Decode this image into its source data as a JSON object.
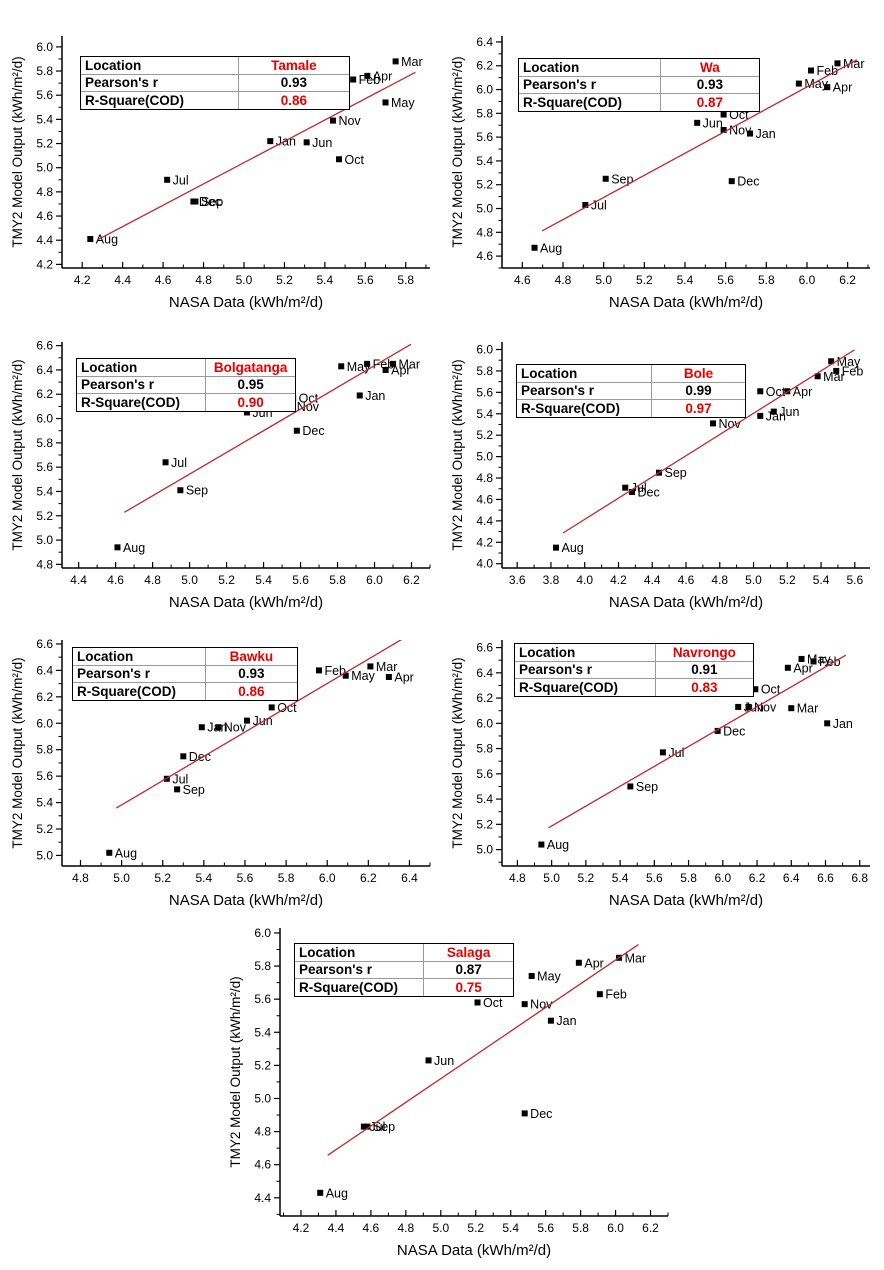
{
  "figure": {
    "description": "Correlation of NASA data and TMY2 model output for seven Ghana locations",
    "marker_color": "#000000",
    "trend_line_color": "#c0272d",
    "highlight_color": "#e60000"
  },
  "legend_labels": {
    "location": "Location",
    "pearson": "Pearson's r",
    "rsquare": "R-Square(COD)"
  },
  "chart_data": [
    {
      "type": "scatter",
      "location": "Tamale",
      "pearson_r": "0.93",
      "r_square": "0.86",
      "xlabel": "NASA Data (kWh/m²/d)",
      "ylabel": "TMY2 Model Output (kWh/m²/d)",
      "xlim": [
        4.1,
        5.92
      ],
      "ylim": [
        4.17,
        6.09
      ],
      "x_ticks": [
        4.2,
        4.4,
        4.6,
        4.8,
        5.0,
        5.2,
        5.4,
        5.6,
        5.8
      ],
      "y_ticks": [
        4.2,
        4.4,
        4.6,
        4.8,
        5.0,
        5.2,
        5.4,
        5.6,
        5.8,
        6.0
      ],
      "trendline": true,
      "points": [
        [
          "Jan",
          5.13,
          5.22
        ],
        [
          "Feb",
          5.54,
          5.73
        ],
        [
          "Mar",
          5.75,
          5.88
        ],
        [
          "Apr",
          5.61,
          5.76
        ],
        [
          "May",
          5.7,
          5.54
        ],
        [
          "Jun",
          5.31,
          5.21
        ],
        [
          "Jul",
          4.62,
          4.9
        ],
        [
          "Aug",
          4.24,
          4.41
        ],
        [
          "Sep",
          4.76,
          4.72
        ],
        [
          "Oct",
          5.47,
          5.07
        ],
        [
          "Nov",
          5.44,
          5.39
        ],
        [
          "Dec",
          4.75,
          4.72
        ]
      ]
    },
    {
      "type": "scatter",
      "location": "Wa",
      "pearson_r": "0.93",
      "r_square": "0.87",
      "xlabel": "NASA Data (kWh/m²/d)",
      "ylabel": "TMY2 Model Output (kWh/m²/d)",
      "xlim": [
        4.5,
        6.31
      ],
      "ylim": [
        4.5,
        6.45
      ],
      "x_ticks": [
        4.6,
        4.8,
        5.0,
        5.2,
        5.4,
        5.6,
        5.8,
        6.0,
        6.2
      ],
      "y_ticks": [
        4.6,
        4.8,
        5.0,
        5.2,
        5.4,
        5.6,
        5.8,
        6.0,
        6.2,
        6.4
      ],
      "trendline": true,
      "points": [
        [
          "Jan",
          5.72,
          5.63
        ],
        [
          "Feb",
          6.02,
          6.16
        ],
        [
          "Mar",
          6.15,
          6.22
        ],
        [
          "Apr",
          6.1,
          6.02
        ],
        [
          "May",
          5.96,
          6.05
        ],
        [
          "Jun",
          5.46,
          5.72
        ],
        [
          "Jul",
          4.91,
          5.03
        ],
        [
          "Aug",
          4.66,
          4.67
        ],
        [
          "Sep",
          5.01,
          5.25
        ],
        [
          "Oct",
          5.59,
          5.79
        ],
        [
          "Nov",
          5.59,
          5.66
        ],
        [
          "Dec",
          5.63,
          5.23
        ]
      ]
    },
    {
      "type": "scatter",
      "location": "Bolgatanga",
      "pearson_r": "0.95",
      "r_square": "0.90",
      "xlabel": "NASA Data (kWh/m²/d)",
      "ylabel": "TMY2 Model Output (kWh/m²/d)",
      "xlim": [
        4.31,
        6.3
      ],
      "ylim": [
        4.77,
        6.63
      ],
      "x_ticks": [
        4.4,
        4.6,
        4.8,
        5.0,
        5.2,
        5.4,
        5.6,
        5.8,
        6.0,
        6.2
      ],
      "y_ticks": [
        4.8,
        5.0,
        5.2,
        5.4,
        5.6,
        5.8,
        6.0,
        6.2,
        6.4,
        6.6
      ],
      "trendline": true,
      "points": [
        [
          "Jan",
          5.92,
          6.19
        ],
        [
          "Feb",
          5.96,
          6.45
        ],
        [
          "Mar",
          6.1,
          6.45
        ],
        [
          "Apr",
          6.06,
          6.4
        ],
        [
          "May",
          5.82,
          6.43
        ],
        [
          "Jun",
          5.31,
          6.05
        ],
        [
          "Jul",
          4.87,
          5.64
        ],
        [
          "Aug",
          4.61,
          4.94
        ],
        [
          "Sep",
          4.95,
          5.41
        ],
        [
          "Oct",
          5.56,
          6.17
        ],
        [
          "Nov",
          5.55,
          6.1
        ],
        [
          "Dec",
          5.58,
          5.9
        ]
      ]
    },
    {
      "type": "scatter",
      "location": "Bole",
      "pearson_r": "0.99",
      "r_square": "0.97",
      "xlabel": "NASA Data (kWh/m²/d)",
      "ylabel": "TMY2 Model Output (kWh/m²/d)",
      "xlim": [
        3.51,
        5.69
      ],
      "ylim": [
        3.96,
        6.07
      ],
      "x_ticks": [
        3.6,
        3.8,
        4.0,
        4.2,
        4.4,
        4.6,
        4.8,
        5.0,
        5.2,
        5.4,
        5.6
      ],
      "y_ticks": [
        4.0,
        4.2,
        4.4,
        4.6,
        4.8,
        5.0,
        5.2,
        5.4,
        5.6,
        5.8,
        6.0
      ],
      "trendline": true,
      "points": [
        [
          "Jan",
          5.04,
          5.38
        ],
        [
          "Feb",
          5.49,
          5.8
        ],
        [
          "Mar",
          5.38,
          5.75
        ],
        [
          "Apr",
          5.2,
          5.61
        ],
        [
          "May",
          5.46,
          5.89
        ],
        [
          "Jun",
          5.12,
          5.42
        ],
        [
          "Jul",
          4.24,
          4.71
        ],
        [
          "Aug",
          3.83,
          4.15
        ],
        [
          "Sep",
          4.44,
          4.85
        ],
        [
          "Oct",
          5.04,
          5.61
        ],
        [
          "Nov",
          4.76,
          5.31
        ],
        [
          "Dec",
          4.28,
          4.67
        ]
      ]
    },
    {
      "type": "scatter",
      "location": "Bawku",
      "pearson_r": "0.93",
      "r_square": "0.86",
      "xlabel": "NASA Data (kWh/m²/d)",
      "ylabel": "TMY2 Model Output (kWh/m²/d)",
      "xlim": [
        4.71,
        6.5
      ],
      "ylim": [
        4.92,
        6.63
      ],
      "x_ticks": [
        4.8,
        5.0,
        5.2,
        5.4,
        5.6,
        5.8,
        6.0,
        6.2,
        6.4
      ],
      "y_ticks": [
        5.0,
        5.2,
        5.4,
        5.6,
        5.8,
        6.0,
        6.2,
        6.4,
        6.6
      ],
      "trendline": true,
      "points": [
        [
          "Jan",
          5.39,
          5.97
        ],
        [
          "Feb",
          5.96,
          6.4
        ],
        [
          "Mar",
          6.21,
          6.43
        ],
        [
          "Apr",
          6.3,
          6.35
        ],
        [
          "May",
          6.09,
          6.36
        ],
        [
          "Jun",
          5.61,
          6.02
        ],
        [
          "Jul",
          5.22,
          5.58
        ],
        [
          "Aug",
          4.94,
          5.02
        ],
        [
          "Sep",
          5.27,
          5.5
        ],
        [
          "Oct",
          5.73,
          6.12
        ],
        [
          "Nov",
          5.47,
          5.97
        ],
        [
          "Dec",
          5.3,
          5.75
        ]
      ]
    },
    {
      "type": "scatter",
      "location": "Navrongo",
      "pearson_r": "0.91",
      "r_square": "0.83",
      "xlabel": "NASA Data (kWh/m²/d)",
      "ylabel": "TMY2 Model Output (kWh/m²/d)",
      "xlim": [
        4.71,
        6.86
      ],
      "ylim": [
        4.87,
        6.66
      ],
      "x_ticks": [
        4.8,
        5.0,
        5.2,
        5.4,
        5.6,
        5.8,
        6.0,
        6.2,
        6.4,
        6.6,
        6.8
      ],
      "y_ticks": [
        5.0,
        5.2,
        5.4,
        5.6,
        5.8,
        6.0,
        6.2,
        6.4,
        6.6
      ],
      "trendline": true,
      "points": [
        [
          "Jan",
          6.61,
          6.0
        ],
        [
          "Feb",
          6.53,
          6.49
        ],
        [
          "Mar",
          6.4,
          6.12
        ],
        [
          "Apr",
          6.38,
          6.44
        ],
        [
          "May",
          6.46,
          6.51
        ],
        [
          "Jun",
          6.09,
          6.13
        ],
        [
          "Jul",
          5.65,
          5.77
        ],
        [
          "Aug",
          4.94,
          5.04
        ],
        [
          "Sep",
          5.46,
          5.5
        ],
        [
          "Oct",
          6.19,
          6.27
        ],
        [
          "Nov",
          6.15,
          6.13
        ],
        [
          "Dec",
          5.97,
          5.94
        ]
      ]
    },
    {
      "type": "scatter",
      "location": "Salaga",
      "pearson_r": "0.87",
      "r_square": "0.75",
      "xlabel": "NASA Data (kWh/m²/d)",
      "ylabel": "TMY2 Model Output (kWh/m²/d)",
      "xlim": [
        4.08,
        6.3
      ],
      "ylim": [
        4.29,
        6.03
      ],
      "x_ticks": [
        4.2,
        4.4,
        4.6,
        4.8,
        5.0,
        5.2,
        5.4,
        5.6,
        5.8,
        6.0,
        6.2
      ],
      "y_ticks": [
        4.4,
        4.6,
        4.8,
        5.0,
        5.2,
        5.4,
        5.6,
        5.8,
        6.0
      ],
      "trendline": true,
      "points": [
        [
          "Jan",
          5.63,
          5.47
        ],
        [
          "Feb",
          5.91,
          5.63
        ],
        [
          "Mar",
          6.02,
          5.85
        ],
        [
          "Apr",
          5.79,
          5.82
        ],
        [
          "May",
          5.52,
          5.74
        ],
        [
          "Jun",
          4.93,
          5.23
        ],
        [
          "Jul",
          4.56,
          4.83
        ],
        [
          "Aug",
          4.31,
          4.43
        ],
        [
          "Sep",
          4.58,
          4.83
        ],
        [
          "Oct",
          5.21,
          5.58
        ],
        [
          "Nov",
          5.48,
          5.57
        ],
        [
          "Dec",
          5.48,
          4.91
        ]
      ]
    }
  ]
}
